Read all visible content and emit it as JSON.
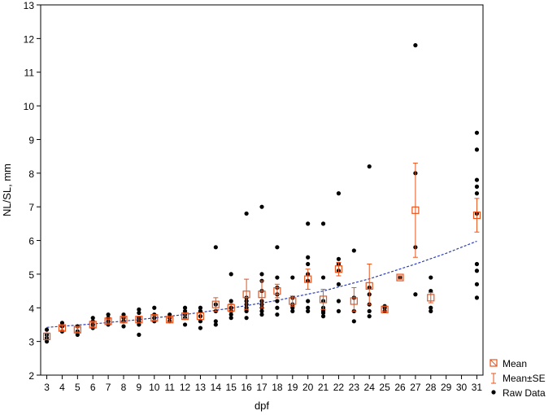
{
  "chart_data": {
    "type": "scatter",
    "xlabel": "dpf",
    "ylabel": "NL/SL, mm",
    "xlim": [
      2.6,
      31.4
    ],
    "ylim": [
      2,
      13
    ],
    "x_ticks": [
      3,
      4,
      5,
      6,
      7,
      8,
      9,
      10,
      11,
      12,
      13,
      14,
      15,
      16,
      17,
      18,
      19,
      20,
      21,
      22,
      23,
      24,
      25,
      26,
      27,
      28,
      29,
      30,
      31
    ],
    "y_ticks": [
      2,
      3,
      4,
      5,
      6,
      7,
      8,
      9,
      10,
      11,
      12,
      13
    ],
    "grid": false,
    "legend_position": "bottom-right",
    "series": [
      {
        "name": "Mean",
        "marker": "square",
        "color": "#e8541c",
        "points": [
          {
            "x": 3,
            "y": 3.15
          },
          {
            "x": 4,
            "y": 3.4
          },
          {
            "x": 5,
            "y": 3.35
          },
          {
            "x": 6,
            "y": 3.5
          },
          {
            "x": 7,
            "y": 3.6
          },
          {
            "x": 8,
            "y": 3.65
          },
          {
            "x": 9,
            "y": 3.65
          },
          {
            "x": 10,
            "y": 3.7
          },
          {
            "x": 11,
            "y": 3.65
          },
          {
            "x": 12,
            "y": 3.75
          },
          {
            "x": 13,
            "y": 3.75
          },
          {
            "x": 14,
            "y": 4.1
          },
          {
            "x": 15,
            "y": 4.0
          },
          {
            "x": 16,
            "y": 4.4
          },
          {
            "x": 17,
            "y": 4.4
          },
          {
            "x": 18,
            "y": 4.5
          },
          {
            "x": 19,
            "y": 4.2
          },
          {
            "x": 20,
            "y": 4.85
          },
          {
            "x": 21,
            "y": 4.25
          },
          {
            "x": 22,
            "y": 5.15
          },
          {
            "x": 23,
            "y": 4.2
          },
          {
            "x": 24,
            "y": 4.65
          },
          {
            "x": 25,
            "y": 3.95
          },
          {
            "x": 26,
            "y": 4.9
          },
          {
            "x": 27,
            "y": 6.9
          },
          {
            "x": 28,
            "y": 4.3
          },
          {
            "x": 31,
            "y": 6.75
          }
        ]
      },
      {
        "name": "Mean±SE",
        "marker": "errorbar",
        "color": "#e8541c",
        "intervals": [
          {
            "x": 3,
            "low": 3.05,
            "high": 3.25
          },
          {
            "x": 4,
            "low": 3.33,
            "high": 3.47
          },
          {
            "x": 5,
            "low": 3.28,
            "high": 3.42
          },
          {
            "x": 6,
            "low": 3.43,
            "high": 3.57
          },
          {
            "x": 7,
            "low": 3.54,
            "high": 3.66
          },
          {
            "x": 8,
            "low": 3.58,
            "high": 3.72
          },
          {
            "x": 9,
            "low": 3.55,
            "high": 3.75
          },
          {
            "x": 10,
            "low": 3.63,
            "high": 3.77
          },
          {
            "x": 11,
            "low": 3.59,
            "high": 3.71
          },
          {
            "x": 12,
            "low": 3.68,
            "high": 3.82
          },
          {
            "x": 13,
            "low": 3.65,
            "high": 3.85
          },
          {
            "x": 14,
            "low": 3.9,
            "high": 4.3
          },
          {
            "x": 15,
            "low": 3.88,
            "high": 4.12
          },
          {
            "x": 16,
            "low": 3.95,
            "high": 4.85
          },
          {
            "x": 17,
            "low": 4.0,
            "high": 4.8
          },
          {
            "x": 18,
            "low": 4.3,
            "high": 4.7
          },
          {
            "x": 19,
            "low": 4.05,
            "high": 4.35
          },
          {
            "x": 20,
            "low": 4.55,
            "high": 5.15
          },
          {
            "x": 21,
            "low": 3.95,
            "high": 4.55
          },
          {
            "x": 22,
            "low": 4.95,
            "high": 5.35
          },
          {
            "x": 23,
            "low": 3.9,
            "high": 4.6
          },
          {
            "x": 24,
            "low": 4.1,
            "high": 5.3
          },
          {
            "x": 25,
            "low": 3.9,
            "high": 4.05
          },
          {
            "x": 26,
            "low": 4.85,
            "high": 4.95
          },
          {
            "x": 27,
            "low": 5.5,
            "high": 8.3
          },
          {
            "x": 28,
            "low": 4.15,
            "high": 4.45
          },
          {
            "x": 31,
            "low": 6.25,
            "high": 7.25
          }
        ]
      },
      {
        "name": "Raw Data",
        "marker": "dot",
        "color": "#000000",
        "points": [
          {
            "x": 3,
            "y": 3.0
          },
          {
            "x": 3,
            "y": 3.1
          },
          {
            "x": 3,
            "y": 3.2
          },
          {
            "x": 3,
            "y": 3.35
          },
          {
            "x": 4,
            "y": 3.3
          },
          {
            "x": 4,
            "y": 3.45
          },
          {
            "x": 4,
            "y": 3.55
          },
          {
            "x": 5,
            "y": 3.2
          },
          {
            "x": 5,
            "y": 3.3
          },
          {
            "x": 5,
            "y": 3.45
          },
          {
            "x": 6,
            "y": 3.4
          },
          {
            "x": 6,
            "y": 3.5
          },
          {
            "x": 6,
            "y": 3.6
          },
          {
            "x": 6,
            "y": 3.7
          },
          {
            "x": 7,
            "y": 3.5
          },
          {
            "x": 7,
            "y": 3.6
          },
          {
            "x": 7,
            "y": 3.7
          },
          {
            "x": 7,
            "y": 3.8
          },
          {
            "x": 8,
            "y": 3.45
          },
          {
            "x": 8,
            "y": 3.6
          },
          {
            "x": 8,
            "y": 3.7
          },
          {
            "x": 8,
            "y": 3.8
          },
          {
            "x": 9,
            "y": 3.2
          },
          {
            "x": 9,
            "y": 3.5
          },
          {
            "x": 9,
            "y": 3.6
          },
          {
            "x": 9,
            "y": 3.7
          },
          {
            "x": 9,
            "y": 3.85
          },
          {
            "x": 9,
            "y": 3.95
          },
          {
            "x": 10,
            "y": 3.6
          },
          {
            "x": 10,
            "y": 3.7
          },
          {
            "x": 10,
            "y": 3.8
          },
          {
            "x": 10,
            "y": 4.0
          },
          {
            "x": 11,
            "y": 3.6
          },
          {
            "x": 11,
            "y": 3.7
          },
          {
            "x": 11,
            "y": 3.8
          },
          {
            "x": 12,
            "y": 3.5
          },
          {
            "x": 12,
            "y": 3.7
          },
          {
            "x": 12,
            "y": 3.8
          },
          {
            "x": 12,
            "y": 3.9
          },
          {
            "x": 12,
            "y": 4.0
          },
          {
            "x": 13,
            "y": 3.4
          },
          {
            "x": 13,
            "y": 3.6
          },
          {
            "x": 13,
            "y": 3.75
          },
          {
            "x": 13,
            "y": 3.9
          },
          {
            "x": 13,
            "y": 4.0
          },
          {
            "x": 14,
            "y": 3.5
          },
          {
            "x": 14,
            "y": 3.6
          },
          {
            "x": 14,
            "y": 3.9
          },
          {
            "x": 14,
            "y": 4.1
          },
          {
            "x": 14,
            "y": 5.8
          },
          {
            "x": 15,
            "y": 3.7
          },
          {
            "x": 15,
            "y": 3.8
          },
          {
            "x": 15,
            "y": 3.9
          },
          {
            "x": 15,
            "y": 4.0
          },
          {
            "x": 15,
            "y": 4.2
          },
          {
            "x": 15,
            "y": 5.0
          },
          {
            "x": 16,
            "y": 3.7
          },
          {
            "x": 16,
            "y": 3.9
          },
          {
            "x": 16,
            "y": 4.0
          },
          {
            "x": 16,
            "y": 4.1
          },
          {
            "x": 16,
            "y": 4.2
          },
          {
            "x": 16,
            "y": 4.3
          },
          {
            "x": 16,
            "y": 6.8
          },
          {
            "x": 17,
            "y": 3.8
          },
          {
            "x": 17,
            "y": 3.9
          },
          {
            "x": 17,
            "y": 4.0
          },
          {
            "x": 17,
            "y": 4.1
          },
          {
            "x": 17,
            "y": 4.2
          },
          {
            "x": 17,
            "y": 4.5
          },
          {
            "x": 17,
            "y": 4.8
          },
          {
            "x": 17,
            "y": 5.0
          },
          {
            "x": 17,
            "y": 7.0
          },
          {
            "x": 18,
            "y": 3.8
          },
          {
            "x": 18,
            "y": 4.0
          },
          {
            "x": 18,
            "y": 4.2
          },
          {
            "x": 18,
            "y": 4.4
          },
          {
            "x": 18,
            "y": 4.6
          },
          {
            "x": 18,
            "y": 4.9
          },
          {
            "x": 18,
            "y": 5.8
          },
          {
            "x": 19,
            "y": 3.9
          },
          {
            "x": 19,
            "y": 4.0
          },
          {
            "x": 19,
            "y": 4.1
          },
          {
            "x": 19,
            "y": 4.3
          },
          {
            "x": 19,
            "y": 4.9
          },
          {
            "x": 20,
            "y": 3.9
          },
          {
            "x": 20,
            "y": 4.0
          },
          {
            "x": 20,
            "y": 4.2
          },
          {
            "x": 20,
            "y": 4.8
          },
          {
            "x": 20,
            "y": 5.0
          },
          {
            "x": 20,
            "y": 5.3
          },
          {
            "x": 20,
            "y": 5.5
          },
          {
            "x": 20,
            "y": 6.5
          },
          {
            "x": 21,
            "y": 3.75
          },
          {
            "x": 21,
            "y": 3.85
          },
          {
            "x": 21,
            "y": 3.9
          },
          {
            "x": 21,
            "y": 4.0
          },
          {
            "x": 21,
            "y": 4.2
          },
          {
            "x": 21,
            "y": 4.9
          },
          {
            "x": 21,
            "y": 6.5
          },
          {
            "x": 22,
            "y": 3.9
          },
          {
            "x": 22,
            "y": 4.2
          },
          {
            "x": 22,
            "y": 4.7
          },
          {
            "x": 22,
            "y": 5.1
          },
          {
            "x": 22,
            "y": 5.3
          },
          {
            "x": 22,
            "y": 5.45
          },
          {
            "x": 22,
            "y": 7.4
          },
          {
            "x": 23,
            "y": 3.6
          },
          {
            "x": 23,
            "y": 3.9
          },
          {
            "x": 23,
            "y": 4.3
          },
          {
            "x": 23,
            "y": 5.7
          },
          {
            "x": 24,
            "y": 3.75
          },
          {
            "x": 24,
            "y": 3.9
          },
          {
            "x": 24,
            "y": 4.1
          },
          {
            "x": 24,
            "y": 4.4
          },
          {
            "x": 24,
            "y": 4.6
          },
          {
            "x": 24,
            "y": 8.2
          },
          {
            "x": 25,
            "y": 3.9
          },
          {
            "x": 25,
            "y": 4.0
          },
          {
            "x": 25,
            "y": 4.05
          },
          {
            "x": 26,
            "y": 4.9
          },
          {
            "x": 27,
            "y": 4.4
          },
          {
            "x": 27,
            "y": 5.8
          },
          {
            "x": 27,
            "y": 8.0
          },
          {
            "x": 27,
            "y": 11.8
          },
          {
            "x": 28,
            "y": 3.9
          },
          {
            "x": 28,
            "y": 4.0
          },
          {
            "x": 28,
            "y": 4.5
          },
          {
            "x": 28,
            "y": 4.9
          },
          {
            "x": 31,
            "y": 4.3
          },
          {
            "x": 31,
            "y": 4.7
          },
          {
            "x": 31,
            "y": 5.1
          },
          {
            "x": 31,
            "y": 5.3
          },
          {
            "x": 31,
            "y": 6.8
          },
          {
            "x": 31,
            "y": 7.4
          },
          {
            "x": 31,
            "y": 7.6
          },
          {
            "x": 31,
            "y": 7.8
          },
          {
            "x": 31,
            "y": 8.7
          },
          {
            "x": 31,
            "y": 9.2
          }
        ]
      }
    ],
    "trend_line": {
      "style": "dashed",
      "color": "#2b3db5",
      "points": [
        {
          "x": 3,
          "y": 3.42
        },
        {
          "x": 6,
          "y": 3.52
        },
        {
          "x": 9,
          "y": 3.65
        },
        {
          "x": 12,
          "y": 3.8
        },
        {
          "x": 15,
          "y": 3.99
        },
        {
          "x": 18,
          "y": 4.22
        },
        {
          "x": 21,
          "y": 4.5
        },
        {
          "x": 24,
          "y": 4.86
        },
        {
          "x": 27,
          "y": 5.3
        },
        {
          "x": 29,
          "y": 5.62
        },
        {
          "x": 31,
          "y": 5.98
        }
      ]
    }
  }
}
